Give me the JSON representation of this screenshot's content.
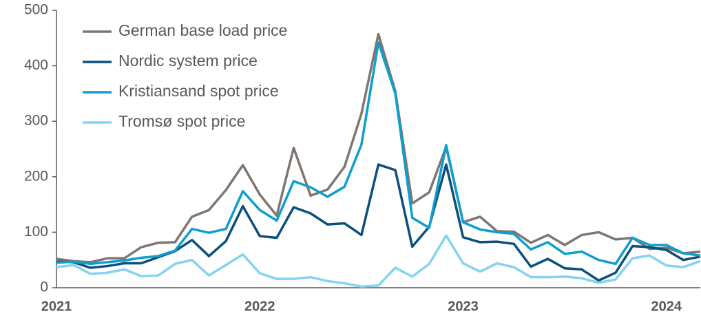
{
  "chart_data": {
    "type": "line",
    "categories": [
      "2021",
      null,
      null,
      null,
      null,
      null,
      null,
      null,
      null,
      null,
      null,
      null,
      "2022",
      null,
      null,
      null,
      null,
      null,
      null,
      null,
      null,
      null,
      null,
      null,
      "2023",
      null,
      null,
      null,
      null,
      null,
      null,
      null,
      null,
      null,
      null,
      null,
      "2024",
      null,
      null
    ],
    "series": [
      {
        "name": "German base load price",
        "color": "#7f7571",
        "values": [
          52,
          48,
          46,
          53,
          53,
          73,
          81,
          82,
          128,
          140,
          176,
          221,
          168,
          130,
          252,
          166,
          177,
          218,
          314,
          457,
          354,
          152,
          172,
          254,
          118,
          128,
          102,
          101,
          81,
          95,
          77,
          95,
          100,
          87,
          90,
          70,
          72,
          62,
          65
        ]
      },
      {
        "name": "Nordic system price",
        "color": "#0b4f7c",
        "values": [
          47,
          46,
          36,
          39,
          44,
          44,
          55,
          66,
          86,
          57,
          84,
          147,
          93,
          90,
          145,
          134,
          114,
          116,
          95,
          222,
          212,
          74,
          110,
          222,
          91,
          82,
          83,
          79,
          38,
          52,
          35,
          33,
          13,
          27,
          75,
          73,
          68,
          50,
          56
        ]
      },
      {
        "name": "Kristiansand spot price",
        "color": "#0e9fcf",
        "values": [
          45,
          47,
          43,
          46,
          49,
          54,
          57,
          67,
          106,
          99,
          106,
          174,
          140,
          121,
          192,
          181,
          164,
          182,
          258,
          442,
          350,
          126,
          108,
          257,
          118,
          105,
          100,
          97,
          69,
          82,
          61,
          65,
          50,
          43,
          90,
          77,
          77,
          62,
          58
        ]
      },
      {
        "name": "Tromsø spot price",
        "color": "#85d3ee",
        "values": [
          37,
          41,
          25,
          27,
          33,
          21,
          22,
          43,
          50,
          22,
          41,
          60,
          26,
          16,
          16,
          19,
          12,
          8,
          2,
          4,
          36,
          20,
          43,
          94,
          44,
          29,
          44,
          37,
          19,
          19,
          20,
          17,
          9,
          15,
          53,
          58,
          40,
          37,
          48
        ]
      }
    ],
    "ylim": [
      0,
      500
    ],
    "yticks": [
      0,
      100,
      200,
      300,
      400,
      500
    ],
    "legend": "top-left"
  }
}
